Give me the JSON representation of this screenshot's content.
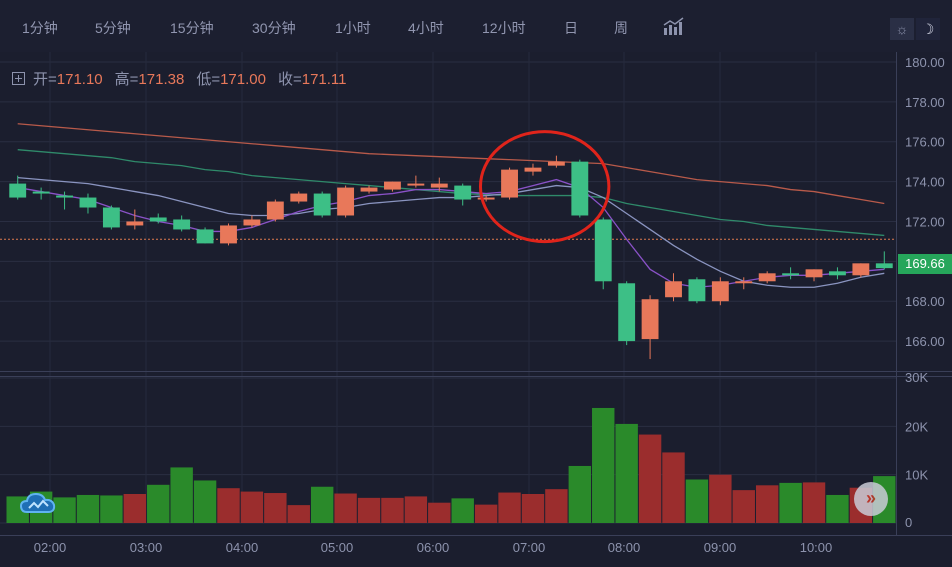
{
  "toolbar": {
    "tabs": [
      "1分钟",
      "5分钟",
      "15分钟",
      "30分钟",
      "1小时",
      "4小时",
      "12小时",
      "日",
      "周"
    ],
    "indicator_icon": "bar-chart-icon",
    "theme_light_icon": "sun-icon",
    "theme_dark_icon": "moon-icon",
    "theme_light_glyph": "☼",
    "theme_dark_glyph": "☽"
  },
  "ohlc": {
    "open_label": "开=",
    "open": "171.10",
    "high_label": "高=",
    "high": "171.38",
    "low_label": "低=",
    "low": "171.00",
    "close_label": "收=",
    "close": "171.11"
  },
  "current_price": "169.66",
  "next_button": "»",
  "colors": {
    "up": "#e8785a",
    "down": "#3dbf86",
    "vol_up": "#9b2d2d",
    "vol_down": "#2a8a2a",
    "highlight": "#e0241b",
    "ma_long": "#b85a4a",
    "ma_mid": "#2f8a6a",
    "ma_short": "#8a52c8",
    "ma_fast": "#8a94c0"
  },
  "chart_data": {
    "type": "candlestick",
    "price_axis": {
      "ylim": [
        164.5,
        180.5
      ],
      "ticks": [
        166,
        168,
        170,
        172,
        174,
        176,
        178,
        180
      ],
      "tick_labels": [
        "166.00",
        "168.00",
        "170.00",
        "172.00",
        "174.00",
        "176.00",
        "178.00",
        "180.00"
      ]
    },
    "volume_axis": {
      "ylim": [
        0,
        30000
      ],
      "ticks": [
        0,
        10000,
        20000,
        30000
      ],
      "tick_labels": [
        "0",
        "10K",
        "20K",
        "30K"
      ]
    },
    "time_labels": [
      "02:00",
      "03:00",
      "04:00",
      "05:00",
      "06:00",
      "07:00",
      "08:00",
      "09:00",
      "10:00"
    ],
    "reference_price": 171.11,
    "candles": [
      {
        "o": 173.9,
        "h": 174.3,
        "l": 173.1,
        "c": 173.2,
        "v": 5500
      },
      {
        "o": 173.5,
        "h": 173.7,
        "l": 173.1,
        "c": 173.4,
        "v": 6500
      },
      {
        "o": 173.3,
        "h": 173.5,
        "l": 172.6,
        "c": 173.2,
        "v": 5300
      },
      {
        "o": 173.2,
        "h": 173.4,
        "l": 172.4,
        "c": 172.7,
        "v": 5800
      },
      {
        "o": 172.7,
        "h": 172.8,
        "l": 171.6,
        "c": 171.7,
        "v": 5700
      },
      {
        "o": 171.8,
        "h": 172.6,
        "l": 171.6,
        "c": 172.0,
        "v": 6000
      },
      {
        "o": 172.2,
        "h": 172.4,
        "l": 171.9,
        "c": 172.0,
        "v": 7900
      },
      {
        "o": 172.1,
        "h": 172.3,
        "l": 171.5,
        "c": 171.6,
        "v": 11500
      },
      {
        "o": 171.6,
        "h": 171.7,
        "l": 170.9,
        "c": 170.9,
        "v": 8800
      },
      {
        "o": 170.9,
        "h": 171.9,
        "l": 170.8,
        "c": 171.8,
        "v": 7200
      },
      {
        "o": 171.8,
        "h": 172.3,
        "l": 171.7,
        "c": 172.1,
        "v": 6500
      },
      {
        "o": 172.1,
        "h": 173.1,
        "l": 172.0,
        "c": 173.0,
        "v": 6200
      },
      {
        "o": 173.0,
        "h": 173.5,
        "l": 172.9,
        "c": 173.4,
        "v": 3700
      },
      {
        "o": 173.4,
        "h": 173.5,
        "l": 172.2,
        "c": 172.3,
        "v": 7500
      },
      {
        "o": 172.3,
        "h": 173.8,
        "l": 172.2,
        "c": 173.7,
        "v": 6100
      },
      {
        "o": 173.5,
        "h": 173.8,
        "l": 173.4,
        "c": 173.7,
        "v": 5200
      },
      {
        "o": 173.6,
        "h": 174.0,
        "l": 173.5,
        "c": 174.0,
        "v": 5200
      },
      {
        "o": 173.8,
        "h": 174.3,
        "l": 173.7,
        "c": 173.9,
        "v": 5500
      },
      {
        "o": 173.7,
        "h": 174.2,
        "l": 173.5,
        "c": 173.9,
        "v": 4200
      },
      {
        "o": 173.8,
        "h": 173.9,
        "l": 172.8,
        "c": 173.1,
        "v": 5100
      },
      {
        "o": 173.1,
        "h": 173.3,
        "l": 173.0,
        "c": 173.2,
        "v": 3800
      },
      {
        "o": 173.2,
        "h": 174.7,
        "l": 173.1,
        "c": 174.6,
        "v": 6300
      },
      {
        "o": 174.5,
        "h": 174.9,
        "l": 174.3,
        "c": 174.7,
        "v": 6000
      },
      {
        "o": 174.8,
        "h": 175.3,
        "l": 174.7,
        "c": 175.0,
        "v": 7000
      },
      {
        "o": 175.0,
        "h": 175.1,
        "l": 172.2,
        "c": 172.3,
        "v": 11800
      },
      {
        "o": 172.1,
        "h": 172.2,
        "l": 168.6,
        "c": 169.0,
        "v": 23800
      },
      {
        "o": 168.9,
        "h": 169.0,
        "l": 165.8,
        "c": 166.0,
        "v": 20500
      },
      {
        "o": 166.1,
        "h": 168.3,
        "l": 165.1,
        "c": 168.1,
        "v": 18300
      },
      {
        "o": 168.2,
        "h": 169.4,
        "l": 168.0,
        "c": 169.0,
        "v": 14600
      },
      {
        "o": 169.1,
        "h": 169.2,
        "l": 167.9,
        "c": 168.0,
        "v": 9000
      },
      {
        "o": 168.0,
        "h": 169.2,
        "l": 167.8,
        "c": 169.0,
        "v": 10000
      },
      {
        "o": 168.9,
        "h": 169.2,
        "l": 168.6,
        "c": 169.0,
        "v": 6800
      },
      {
        "o": 169.0,
        "h": 169.5,
        "l": 168.9,
        "c": 169.4,
        "v": 7800
      },
      {
        "o": 169.4,
        "h": 169.7,
        "l": 169.1,
        "c": 169.3,
        "v": 8300
      },
      {
        "o": 169.2,
        "h": 169.6,
        "l": 169.0,
        "c": 169.6,
        "v": 8400
      },
      {
        "o": 169.5,
        "h": 169.7,
        "l": 169.1,
        "c": 169.3,
        "v": 5800
      },
      {
        "o": 169.3,
        "h": 169.9,
        "l": 169.2,
        "c": 169.9,
        "v": 7300
      },
      {
        "o": 169.9,
        "h": 170.5,
        "l": 169.6,
        "c": 169.66,
        "v": 9700
      }
    ],
    "moving_averages": [
      {
        "key": "ma_long",
        "values": [
          176.9,
          176.8,
          176.7,
          176.6,
          176.5,
          176.4,
          176.3,
          176.2,
          176.1,
          176.0,
          175.9,
          175.8,
          175.7,
          175.6,
          175.5,
          175.4,
          175.35,
          175.3,
          175.25,
          175.2,
          175.15,
          175.1,
          175.05,
          175.0,
          174.95,
          174.9,
          174.7,
          174.5,
          174.3,
          174.1,
          174.0,
          173.9,
          173.8,
          173.6,
          173.5,
          173.3,
          173.1,
          172.9
        ]
      },
      {
        "key": "ma_mid",
        "values": [
          175.6,
          175.5,
          175.4,
          175.3,
          175.2,
          175.0,
          174.9,
          174.8,
          174.6,
          174.5,
          174.3,
          174.2,
          174.1,
          174.0,
          173.9,
          173.8,
          173.7,
          173.6,
          173.5,
          173.4,
          173.35,
          173.3,
          173.3,
          173.3,
          173.3,
          173.2,
          172.9,
          172.7,
          172.5,
          172.3,
          172.1,
          172.0,
          171.8,
          171.7,
          171.6,
          171.5,
          171.4,
          171.3
        ]
      },
      {
        "key": "ma_fast",
        "values": [
          174.2,
          174.1,
          174.0,
          173.9,
          173.7,
          173.5,
          173.3,
          173.0,
          172.7,
          172.4,
          172.3,
          172.3,
          172.4,
          172.6,
          172.7,
          172.9,
          173.0,
          173.1,
          173.2,
          173.2,
          173.3,
          173.4,
          173.6,
          173.8,
          173.7,
          173.2,
          172.4,
          171.6,
          170.8,
          170.1,
          169.5,
          169.0,
          168.8,
          168.7,
          168.7,
          168.9,
          169.2,
          169.4
        ]
      },
      {
        "key": "ma_short",
        "values": [
          173.7,
          173.5,
          173.3,
          173.1,
          172.7,
          172.3,
          172.0,
          171.8,
          171.5,
          171.5,
          171.7,
          172.1,
          172.5,
          172.8,
          173.0,
          173.3,
          173.4,
          173.6,
          173.6,
          173.5,
          173.4,
          173.5,
          173.8,
          174.1,
          173.7,
          172.7,
          171.1,
          169.6,
          168.9,
          168.7,
          168.8,
          169.0,
          169.2,
          169.3,
          169.3,
          169.4,
          169.5,
          169.6
        ]
      }
    ],
    "highlight_annotation": {
      "shape": "circle",
      "start_candle": 21,
      "end_candle": 24
    }
  }
}
